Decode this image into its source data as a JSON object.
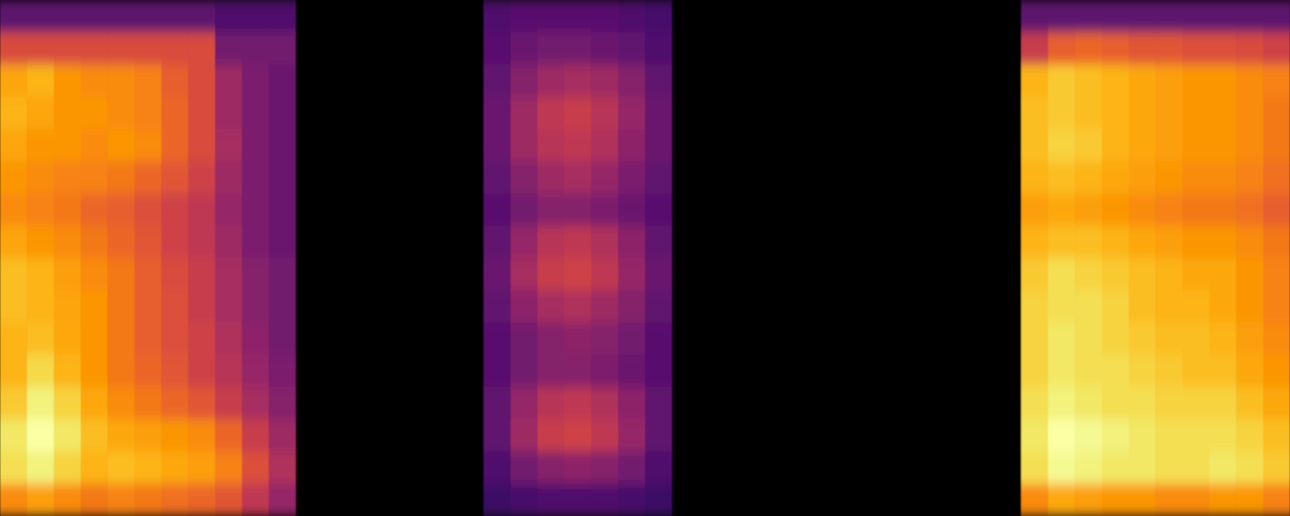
{
  "chart_data": {
    "type": "heatmap",
    "color": "inferno",
    "tick_labels": false,
    "cells": [
      [
        25,
        25,
        25,
        25,
        25,
        25,
        25,
        25,
        22,
        22,
        22,
        0,
        0,
        0,
        0,
        0,
        0,
        0,
        22,
        24,
        24,
        24,
        24,
        22,
        20,
        0,
        0,
        0,
        0,
        0,
        0,
        0,
        0,
        0,
        0,
        0,
        0,
        0,
        25,
        25,
        25,
        25,
        25,
        25,
        25,
        25,
        25,
        25
      ],
      [
        55,
        55,
        55,
        55,
        55,
        55,
        55,
        55,
        30,
        30,
        30,
        0,
        0,
        0,
        0,
        0,
        0,
        0,
        24,
        28,
        30,
        30,
        28,
        26,
        22,
        0,
        0,
        0,
        0,
        0,
        0,
        0,
        0,
        0,
        0,
        0,
        0,
        0,
        50,
        60,
        62,
        60,
        58,
        58,
        56,
        56,
        55,
        52
      ],
      [
        75,
        78,
        72,
        70,
        70,
        68,
        60,
        55,
        40,
        32,
        28,
        0,
        0,
        0,
        0,
        0,
        0,
        0,
        26,
        34,
        40,
        42,
        40,
        34,
        26,
        0,
        0,
        0,
        0,
        0,
        0,
        0,
        0,
        0,
        0,
        0,
        0,
        0,
        78,
        82,
        80,
        78,
        76,
        74,
        72,
        72,
        70,
        68
      ],
      [
        78,
        75,
        72,
        72,
        70,
        68,
        62,
        55,
        40,
        32,
        28,
        0,
        0,
        0,
        0,
        0,
        0,
        0,
        28,
        40,
        48,
        50,
        46,
        38,
        28,
        0,
        0,
        0,
        0,
        0,
        0,
        0,
        0,
        0,
        0,
        0,
        0,
        0,
        80,
        82,
        80,
        78,
        76,
        74,
        72,
        72,
        70,
        66
      ],
      [
        75,
        72,
        72,
        70,
        72,
        70,
        62,
        55,
        42,
        32,
        28,
        0,
        0,
        0,
        0,
        0,
        0,
        0,
        28,
        40,
        46,
        48,
        44,
        36,
        28,
        0,
        0,
        0,
        0,
        0,
        0,
        0,
        0,
        0,
        0,
        0,
        0,
        0,
        80,
        84,
        82,
        78,
        76,
        74,
        72,
        72,
        70,
        66
      ],
      [
        72,
        70,
        68,
        68,
        66,
        62,
        58,
        52,
        40,
        32,
        28,
        0,
        0,
        0,
        0,
        0,
        0,
        0,
        26,
        34,
        40,
        42,
        38,
        32,
        26,
        0,
        0,
        0,
        0,
        0,
        0,
        0,
        0,
        0,
        0,
        0,
        0,
        0,
        78,
        80,
        78,
        76,
        74,
        72,
        70,
        70,
        68,
        64
      ],
      [
        70,
        68,
        66,
        62,
        60,
        56,
        52,
        48,
        38,
        32,
        28,
        0,
        0,
        0,
        0,
        0,
        0,
        0,
        24,
        30,
        34,
        34,
        32,
        28,
        24,
        0,
        0,
        0,
        0,
        0,
        0,
        0,
        0,
        0,
        0,
        0,
        0,
        0,
        74,
        76,
        74,
        72,
        70,
        68,
        66,
        66,
        64,
        60
      ],
      [
        75,
        72,
        70,
        66,
        62,
        58,
        52,
        48,
        40,
        32,
        28,
        0,
        0,
        0,
        0,
        0,
        0,
        0,
        26,
        38,
        46,
        48,
        44,
        36,
        26,
        0,
        0,
        0,
        0,
        0,
        0,
        0,
        0,
        0,
        0,
        0,
        0,
        0,
        78,
        80,
        80,
        78,
        76,
        74,
        72,
        72,
        70,
        66
      ],
      [
        80,
        78,
        74,
        70,
        66,
        60,
        55,
        50,
        42,
        34,
        30,
        0,
        0,
        0,
        0,
        0,
        0,
        0,
        28,
        42,
        50,
        52,
        48,
        38,
        28,
        0,
        0,
        0,
        0,
        0,
        0,
        0,
        0,
        0,
        0,
        0,
        0,
        0,
        82,
        86,
        84,
        82,
        80,
        78,
        76,
        76,
        72,
        68
      ],
      [
        80,
        78,
        75,
        72,
        66,
        60,
        56,
        50,
        42,
        34,
        30,
        0,
        0,
        0,
        0,
        0,
        0,
        0,
        26,
        36,
        42,
        44,
        40,
        34,
        26,
        0,
        0,
        0,
        0,
        0,
        0,
        0,
        0,
        0,
        0,
        0,
        0,
        0,
        84,
        86,
        86,
        84,
        80,
        78,
        78,
        76,
        72,
        68
      ],
      [
        78,
        80,
        76,
        72,
        66,
        60,
        56,
        52,
        44,
        36,
        30,
        0,
        0,
        0,
        0,
        0,
        0,
        0,
        24,
        30,
        34,
        36,
        34,
        30,
        24,
        0,
        0,
        0,
        0,
        0,
        0,
        0,
        0,
        0,
        0,
        0,
        0,
        0,
        84,
        88,
        86,
        84,
        82,
        80,
        80,
        78,
        74,
        70
      ],
      [
        78,
        85,
        78,
        72,
        66,
        62,
        58,
        52,
        46,
        38,
        32,
        0,
        0,
        0,
        0,
        0,
        0,
        0,
        24,
        30,
        34,
        34,
        32,
        28,
        24,
        0,
        0,
        0,
        0,
        0,
        0,
        0,
        0,
        0,
        0,
        0,
        0,
        0,
        84,
        88,
        86,
        86,
        84,
        82,
        80,
        80,
        76,
        72
      ],
      [
        82,
        90,
        84,
        76,
        70,
        66,
        62,
        58,
        50,
        42,
        34,
        0,
        0,
        0,
        0,
        0,
        0,
        0,
        26,
        38,
        46,
        48,
        44,
        36,
        26,
        0,
        0,
        0,
        0,
        0,
        0,
        0,
        0,
        0,
        0,
        0,
        0,
        0,
        86,
        90,
        88,
        86,
        86,
        84,
        84,
        84,
        80,
        76
      ],
      [
        88,
        94,
        88,
        80,
        76,
        74,
        72,
        70,
        62,
        50,
        40,
        0,
        0,
        0,
        0,
        0,
        0,
        0,
        26,
        40,
        50,
        52,
        48,
        38,
        26,
        0,
        0,
        0,
        0,
        0,
        0,
        0,
        0,
        0,
        0,
        0,
        0,
        0,
        88,
        94,
        92,
        90,
        88,
        86,
        86,
        86,
        84,
        80
      ],
      [
        86,
        90,
        84,
        78,
        80,
        78,
        76,
        74,
        68,
        56,
        44,
        0,
        0,
        0,
        0,
        0,
        0,
        0,
        22,
        30,
        34,
        36,
        34,
        30,
        22,
        0,
        0,
        0,
        0,
        0,
        0,
        0,
        0,
        0,
        0,
        0,
        0,
        0,
        86,
        92,
        90,
        88,
        88,
        86,
        86,
        88,
        86,
        82
      ],
      [
        70,
        74,
        70,
        66,
        68,
        66,
        64,
        62,
        58,
        48,
        38,
        0,
        0,
        0,
        0,
        0,
        0,
        0,
        18,
        20,
        22,
        22,
        22,
        20,
        18,
        0,
        0,
        0,
        0,
        0,
        0,
        0,
        0,
        0,
        0,
        0,
        0,
        0,
        70,
        76,
        74,
        72,
        72,
        70,
        70,
        72,
        72,
        68
      ]
    ]
  }
}
